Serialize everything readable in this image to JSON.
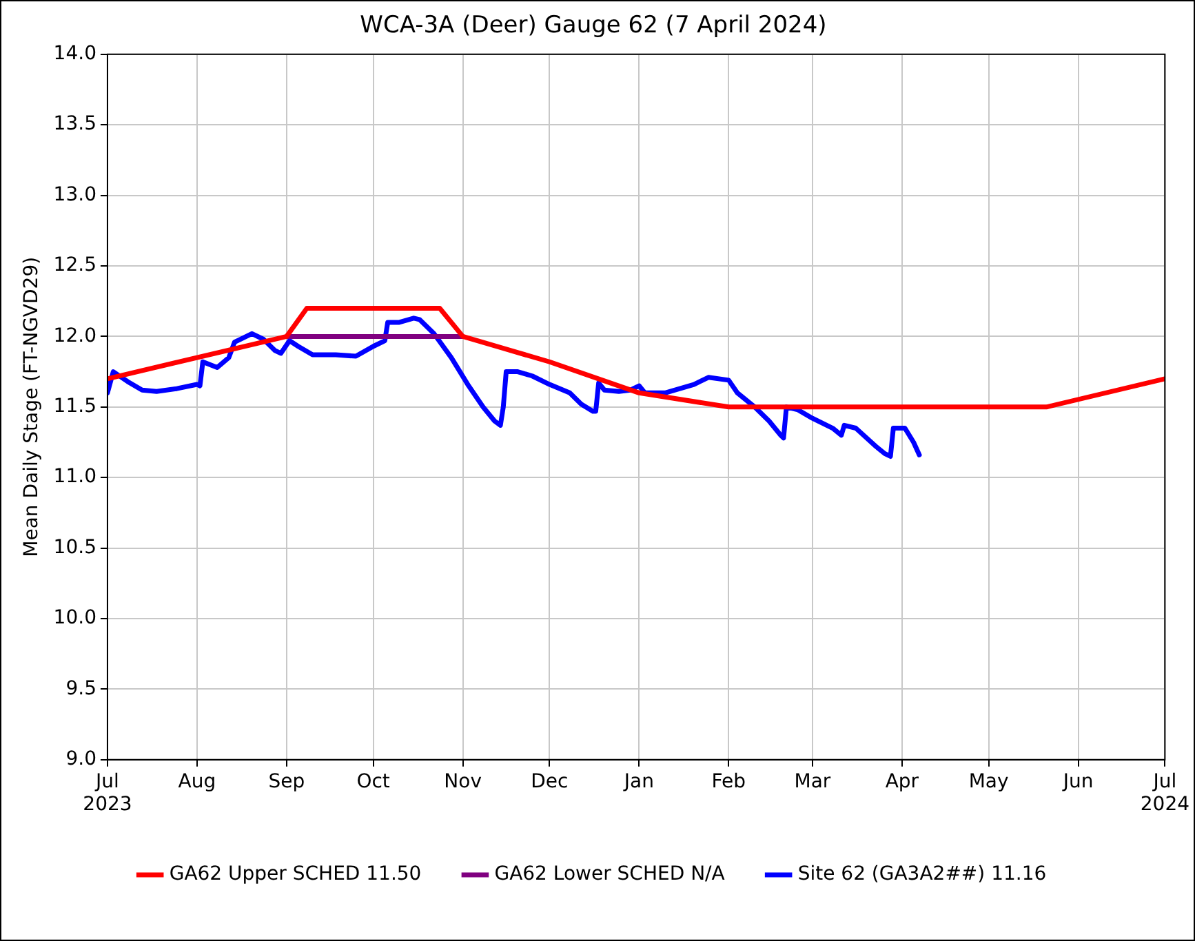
{
  "chart_data": {
    "type": "line",
    "title": "WCA-3A (Deer) Gauge 62 (7 April 2024)",
    "ylabel": "Mean Daily Stage (FT-NGVD29)",
    "xlim": [
      "2023-07-01",
      "2024-07-01"
    ],
    "xticks": [
      {
        "value": "2023-07-01",
        "label": "Jul\n2023"
      },
      {
        "value": "2023-08-01",
        "label": "Aug"
      },
      {
        "value": "2023-09-01",
        "label": "Sep"
      },
      {
        "value": "2023-10-01",
        "label": "Oct"
      },
      {
        "value": "2023-11-01",
        "label": "Nov"
      },
      {
        "value": "2023-12-01",
        "label": "Dec"
      },
      {
        "value": "2024-01-01",
        "label": "Jan"
      },
      {
        "value": "2024-02-01",
        "label": "Feb"
      },
      {
        "value": "2024-03-01",
        "label": "Mar"
      },
      {
        "value": "2024-04-01",
        "label": "Apr"
      },
      {
        "value": "2024-05-01",
        "label": "May"
      },
      {
        "value": "2024-06-01",
        "label": "Jun"
      },
      {
        "value": "2024-07-01",
        "label": "Jul\n2024"
      }
    ],
    "ylim": [
      9,
      14
    ],
    "yticks": [
      {
        "value": 9,
        "label": "9.0"
      },
      {
        "value": 9.5,
        "label": "9.5"
      },
      {
        "value": 10,
        "label": "10.0"
      },
      {
        "value": 10.5,
        "label": "10.5"
      },
      {
        "value": 11,
        "label": "11.0"
      },
      {
        "value": 11.5,
        "label": "11.5"
      },
      {
        "value": 12,
        "label": "12.0"
      },
      {
        "value": 12.5,
        "label": "12.5"
      },
      {
        "value": 13,
        "label": "13.0"
      },
      {
        "value": 13.5,
        "label": "13.5"
      },
      {
        "value": 14,
        "label": "14.0"
      }
    ],
    "grid": true,
    "legend": "bottom",
    "marker": "none",
    "line_style": "solid",
    "series": [
      {
        "name": "GA62 Upper SCHED 11.50",
        "color": "#ff0000",
        "x": [
          "2023-07-01",
          "2023-09-01",
          "2023-09-08",
          "2023-10-24",
          "2023-11-01",
          "2023-12-01",
          "2024-01-01",
          "2024-02-01",
          "2024-05-21",
          "2024-07-01"
        ],
        "values": [
          11.7,
          12.0,
          12.2,
          12.2,
          12.0,
          11.82,
          11.6,
          11.5,
          11.5,
          11.7
        ]
      },
      {
        "name": "GA62 Lower SCHED N/A",
        "color": "#800080",
        "x": [
          "2023-09-01",
          "2023-11-01"
        ],
        "values": [
          12.0,
          12.0
        ]
      },
      {
        "name": "Site 62 (GA3A2##) 11.16",
        "color": "#0000ff",
        "x": [
          "2023-07-01",
          "2023-07-03",
          "2023-07-08",
          "2023-07-13",
          "2023-07-18",
          "2023-07-25",
          "2023-08-01",
          "2023-08-02",
          "2023-08-03",
          "2023-08-08",
          "2023-08-12",
          "2023-08-14",
          "2023-08-20",
          "2023-08-24",
          "2023-08-28",
          "2023-08-30",
          "2023-09-02",
          "2023-09-05",
          "2023-09-10",
          "2023-09-18",
          "2023-09-25",
          "2023-10-01",
          "2023-10-05",
          "2023-10-06",
          "2023-10-10",
          "2023-10-15",
          "2023-10-17",
          "2023-10-22",
          "2023-10-28",
          "2023-11-03",
          "2023-11-08",
          "2023-11-12",
          "2023-11-14",
          "2023-11-15",
          "2023-11-16",
          "2023-11-20",
          "2023-11-25",
          "2023-12-01",
          "2023-12-08",
          "2023-12-12",
          "2023-12-16",
          "2023-12-17",
          "2023-12-18",
          "2023-12-20",
          "2023-12-25",
          "2023-12-29",
          "2024-01-01",
          "2024-01-03",
          "2024-01-10",
          "2024-01-20",
          "2024-01-25",
          "2024-02-01",
          "2024-02-04",
          "2024-02-10",
          "2024-02-15",
          "2024-02-19",
          "2024-02-20",
          "2024-02-21",
          "2024-02-25",
          "2024-03-01",
          "2024-03-08",
          "2024-03-11",
          "2024-03-12",
          "2024-03-16",
          "2024-03-23",
          "2024-03-26",
          "2024-03-28",
          "2024-03-29",
          "2024-04-02",
          "2024-04-05",
          "2024-04-07"
        ],
        "values": [
          11.6,
          11.75,
          11.68,
          11.62,
          11.61,
          11.63,
          11.66,
          11.65,
          11.82,
          11.78,
          11.85,
          11.96,
          12.02,
          11.98,
          11.9,
          11.88,
          11.97,
          11.93,
          11.87,
          11.87,
          11.86,
          11.93,
          11.97,
          12.1,
          12.1,
          12.13,
          12.12,
          12.02,
          11.85,
          11.65,
          11.5,
          11.4,
          11.37,
          11.5,
          11.75,
          11.75,
          11.72,
          11.66,
          11.6,
          11.52,
          11.47,
          11.47,
          11.67,
          11.62,
          11.61,
          11.62,
          11.65,
          11.6,
          11.6,
          11.66,
          11.71,
          11.69,
          11.6,
          11.5,
          11.4,
          11.3,
          11.28,
          11.5,
          11.48,
          11.42,
          11.35,
          11.3,
          11.37,
          11.35,
          11.22,
          11.17,
          11.15,
          11.35,
          11.35,
          11.25,
          11.16
        ]
      }
    ]
  }
}
